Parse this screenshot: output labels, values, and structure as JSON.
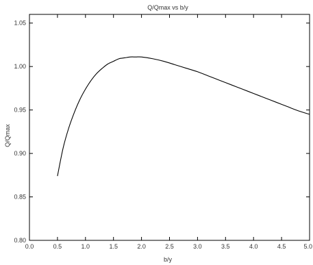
{
  "chart_data": {
    "type": "line",
    "title": "Q/Qmax vs b/y",
    "xlabel": "b/y",
    "ylabel": "Q/Qmax",
    "xlim": [
      0.0,
      5.0
    ],
    "ylim": [
      0.8,
      1.06
    ],
    "xticks": [
      "0.0",
      "0.5",
      "1.0",
      "1.5",
      "2.0",
      "2.5",
      "3.0",
      "3.5",
      "4.0",
      "4.5",
      "5.0"
    ],
    "yticks": [
      "0.80",
      "0.85",
      "0.90",
      "0.95",
      "1.00",
      "1.05"
    ],
    "grid": false,
    "series": [
      {
        "x": [
          0.5,
          0.6,
          0.7,
          0.8,
          0.9,
          1.0,
          1.1,
          1.2,
          1.3,
          1.4,
          1.5,
          1.6,
          1.7,
          1.8,
          1.9,
          2.0,
          2.2,
          2.4,
          2.6,
          2.8,
          3.0,
          3.2,
          3.4,
          3.6,
          3.8,
          4.0,
          4.2,
          4.4,
          4.6,
          4.8,
          5.0
        ],
        "y": [
          0.874,
          0.906,
          0.929,
          0.947,
          0.962,
          0.974,
          0.984,
          0.992,
          0.998,
          1.003,
          1.006,
          1.009,
          1.01,
          1.011,
          1.011,
          1.011,
          1.009,
          1.006,
          1.002,
          0.998,
          0.994,
          0.989,
          0.984,
          0.979,
          0.974,
          0.969,
          0.964,
          0.959,
          0.954,
          0.949,
          0.945
        ]
      }
    ]
  }
}
